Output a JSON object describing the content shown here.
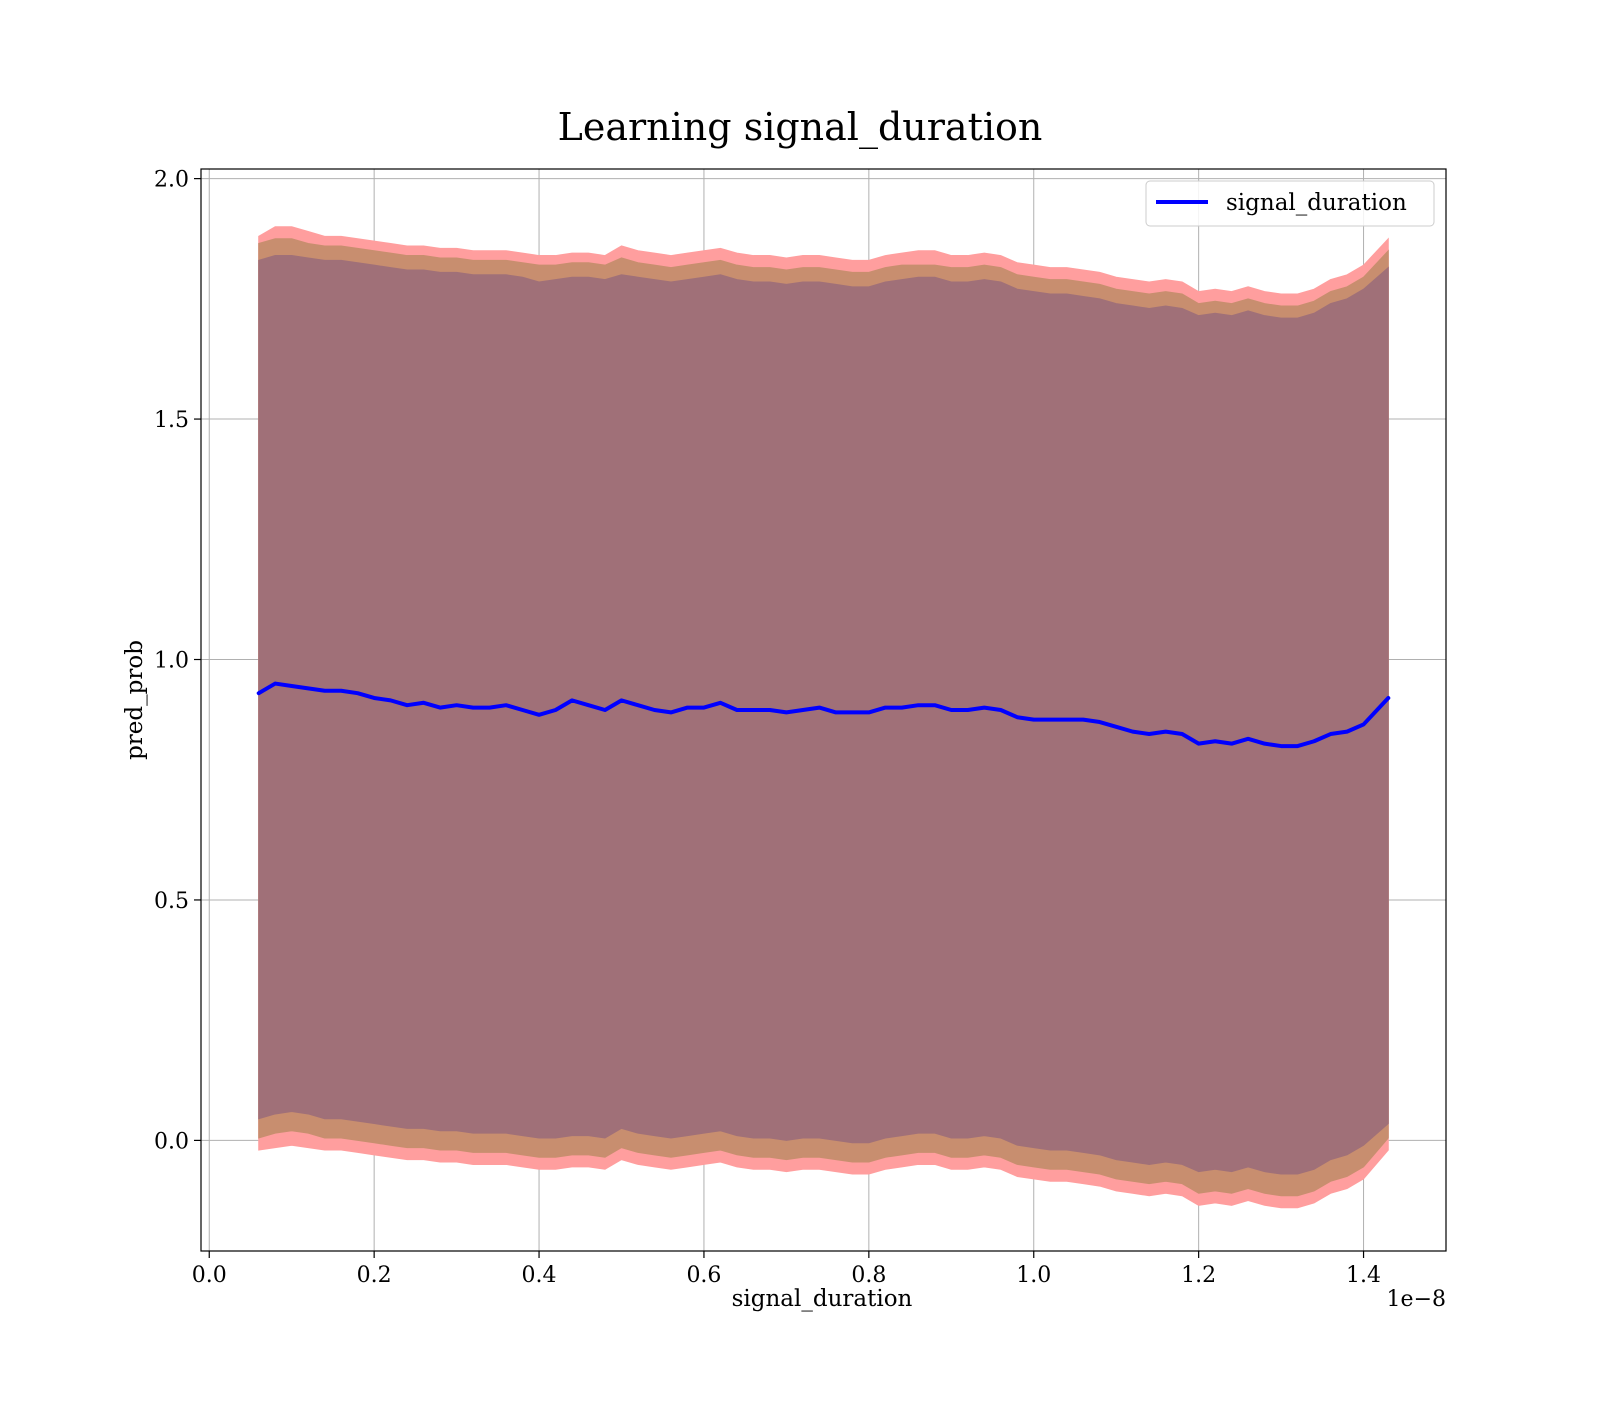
{
  "chart_data": {
    "type": "area",
    "title": "Learning signal_duration",
    "xlabel": "signal_duration",
    "ylabel": "pred_prob",
    "x_offset_label": "1e−8",
    "xlim": [
      -0.01,
      1.5
    ],
    "ylim": [
      -0.23,
      2.02
    ],
    "x_ticks": [
      0.0,
      0.2,
      0.4,
      0.6,
      0.8,
      1.0,
      1.2,
      1.4
    ],
    "x_tick_labels": [
      "0.0",
      "0.2",
      "0.4",
      "0.6",
      "0.8",
      "1.0",
      "1.2",
      "1.4"
    ],
    "y_ticks": [
      0.0,
      0.5,
      1.0,
      1.5,
      2.0
    ],
    "y_tick_labels": [
      "0.0",
      "0.5",
      "1.0",
      "1.5",
      "2.0"
    ],
    "grid": true,
    "legend_position": "top-right",
    "legend": [
      "signal_duration"
    ],
    "colors": {
      "line": "#0000ff",
      "band_outer": "#ff9e9e",
      "band_middle": "#c88e6f",
      "band_inner": "#a07078"
    },
    "x": [
      0.06,
      0.08,
      0.1,
      0.12,
      0.14,
      0.16,
      0.18,
      0.2,
      0.22,
      0.24,
      0.26,
      0.28,
      0.3,
      0.32,
      0.34,
      0.36,
      0.38,
      0.4,
      0.42,
      0.44,
      0.46,
      0.48,
      0.5,
      0.52,
      0.54,
      0.56,
      0.58,
      0.6,
      0.62,
      0.64,
      0.66,
      0.68,
      0.7,
      0.72,
      0.74,
      0.76,
      0.78,
      0.8,
      0.82,
      0.84,
      0.86,
      0.88,
      0.9,
      0.92,
      0.94,
      0.96,
      0.98,
      1.0,
      1.02,
      1.04,
      1.06,
      1.08,
      1.1,
      1.12,
      1.14,
      1.16,
      1.18,
      1.2,
      1.22,
      1.24,
      1.26,
      1.28,
      1.3,
      1.32,
      1.34,
      1.36,
      1.38,
      1.4,
      1.43
    ],
    "series": [
      {
        "name": "signal_duration",
        "values": [
          0.93,
          0.95,
          0.945,
          0.94,
          0.935,
          0.935,
          0.93,
          0.92,
          0.915,
          0.905,
          0.91,
          0.9,
          0.905,
          0.9,
          0.9,
          0.905,
          0.895,
          0.885,
          0.895,
          0.915,
          0.905,
          0.895,
          0.915,
          0.905,
          0.895,
          0.89,
          0.9,
          0.9,
          0.91,
          0.895,
          0.895,
          0.895,
          0.89,
          0.895,
          0.9,
          0.89,
          0.89,
          0.89,
          0.9,
          0.9,
          0.905,
          0.905,
          0.895,
          0.895,
          0.9,
          0.895,
          0.88,
          0.875,
          0.875,
          0.875,
          0.875,
          0.87,
          0.86,
          0.85,
          0.845,
          0.85,
          0.845,
          0.825,
          0.83,
          0.825,
          0.835,
          0.825,
          0.82,
          0.82,
          0.83,
          0.845,
          0.85,
          0.865,
          0.92
        ]
      }
    ],
    "bands": [
      {
        "upper": [
          1.88,
          1.9,
          1.9,
          1.89,
          1.88,
          1.88,
          1.875,
          1.87,
          1.865,
          1.86,
          1.86,
          1.855,
          1.855,
          1.85,
          1.85,
          1.85,
          1.845,
          1.84,
          1.84,
          1.845,
          1.845,
          1.84,
          1.86,
          1.85,
          1.845,
          1.84,
          1.845,
          1.85,
          1.855,
          1.845,
          1.84,
          1.84,
          1.835,
          1.84,
          1.84,
          1.835,
          1.83,
          1.83,
          1.84,
          1.845,
          1.85,
          1.85,
          1.84,
          1.84,
          1.845,
          1.84,
          1.825,
          1.82,
          1.815,
          1.815,
          1.81,
          1.805,
          1.795,
          1.79,
          1.785,
          1.79,
          1.785,
          1.765,
          1.77,
          1.765,
          1.775,
          1.765,
          1.76,
          1.76,
          1.77,
          1.79,
          1.8,
          1.82,
          1.875
        ],
        "lower": [
          -0.02,
          -0.015,
          -0.01,
          -0.015,
          -0.02,
          -0.02,
          -0.025,
          -0.03,
          -0.035,
          -0.04,
          -0.04,
          -0.045,
          -0.045,
          -0.05,
          -0.05,
          -0.05,
          -0.055,
          -0.06,
          -0.06,
          -0.055,
          -0.055,
          -0.06,
          -0.04,
          -0.05,
          -0.055,
          -0.06,
          -0.055,
          -0.05,
          -0.045,
          -0.055,
          -0.06,
          -0.06,
          -0.065,
          -0.06,
          -0.06,
          -0.065,
          -0.07,
          -0.07,
          -0.06,
          -0.055,
          -0.05,
          -0.05,
          -0.06,
          -0.06,
          -0.055,
          -0.06,
          -0.075,
          -0.08,
          -0.085,
          -0.085,
          -0.09,
          -0.095,
          -0.105,
          -0.11,
          -0.115,
          -0.11,
          -0.115,
          -0.135,
          -0.13,
          -0.135,
          -0.125,
          -0.135,
          -0.14,
          -0.14,
          -0.13,
          -0.11,
          -0.1,
          -0.08,
          -0.02
        ]
      },
      {
        "upper": [
          1.865,
          1.875,
          1.875,
          1.865,
          1.86,
          1.86,
          1.855,
          1.85,
          1.845,
          1.84,
          1.84,
          1.835,
          1.835,
          1.83,
          1.83,
          1.83,
          1.825,
          1.82,
          1.82,
          1.825,
          1.825,
          1.82,
          1.835,
          1.825,
          1.82,
          1.815,
          1.82,
          1.825,
          1.83,
          1.82,
          1.815,
          1.815,
          1.81,
          1.815,
          1.815,
          1.81,
          1.805,
          1.805,
          1.815,
          1.82,
          1.82,
          1.82,
          1.815,
          1.815,
          1.82,
          1.815,
          1.8,
          1.795,
          1.79,
          1.79,
          1.785,
          1.78,
          1.77,
          1.765,
          1.76,
          1.765,
          1.76,
          1.74,
          1.745,
          1.74,
          1.75,
          1.74,
          1.735,
          1.735,
          1.745,
          1.765,
          1.775,
          1.795,
          1.85
        ],
        "lower": [
          0.005,
          0.015,
          0.02,
          0.015,
          0.005,
          0.005,
          0.0,
          -0.005,
          -0.01,
          -0.015,
          -0.015,
          -0.02,
          -0.02,
          -0.025,
          -0.025,
          -0.025,
          -0.03,
          -0.035,
          -0.035,
          -0.03,
          -0.03,
          -0.035,
          -0.015,
          -0.025,
          -0.03,
          -0.035,
          -0.03,
          -0.025,
          -0.02,
          -0.03,
          -0.035,
          -0.035,
          -0.04,
          -0.035,
          -0.035,
          -0.04,
          -0.045,
          -0.045,
          -0.035,
          -0.03,
          -0.025,
          -0.025,
          -0.035,
          -0.035,
          -0.03,
          -0.035,
          -0.05,
          -0.055,
          -0.06,
          -0.06,
          -0.065,
          -0.07,
          -0.08,
          -0.085,
          -0.09,
          -0.085,
          -0.09,
          -0.11,
          -0.105,
          -0.11,
          -0.1,
          -0.11,
          -0.115,
          -0.115,
          -0.105,
          -0.085,
          -0.075,
          -0.055,
          0.005
        ]
      },
      {
        "upper": [
          1.83,
          1.84,
          1.84,
          1.835,
          1.83,
          1.83,
          1.825,
          1.82,
          1.815,
          1.81,
          1.81,
          1.805,
          1.805,
          1.8,
          1.8,
          1.8,
          1.795,
          1.785,
          1.79,
          1.795,
          1.795,
          1.79,
          1.8,
          1.795,
          1.79,
          1.785,
          1.79,
          1.795,
          1.8,
          1.79,
          1.785,
          1.785,
          1.78,
          1.785,
          1.785,
          1.78,
          1.775,
          1.775,
          1.785,
          1.79,
          1.795,
          1.795,
          1.785,
          1.785,
          1.79,
          1.785,
          1.77,
          1.765,
          1.76,
          1.76,
          1.755,
          1.75,
          1.74,
          1.735,
          1.73,
          1.735,
          1.73,
          1.715,
          1.72,
          1.715,
          1.725,
          1.715,
          1.71,
          1.71,
          1.72,
          1.74,
          1.75,
          1.77,
          1.815
        ],
        "lower": [
          0.045,
          0.055,
          0.06,
          0.055,
          0.045,
          0.045,
          0.04,
          0.035,
          0.03,
          0.025,
          0.025,
          0.02,
          0.02,
          0.015,
          0.015,
          0.015,
          0.01,
          0.005,
          0.005,
          0.01,
          0.01,
          0.005,
          0.025,
          0.015,
          0.01,
          0.005,
          0.01,
          0.015,
          0.02,
          0.01,
          0.005,
          0.005,
          0.0,
          0.005,
          0.005,
          0.0,
          -0.005,
          -0.005,
          0.005,
          0.01,
          0.015,
          0.015,
          0.005,
          0.005,
          0.01,
          0.005,
          -0.01,
          -0.015,
          -0.02,
          -0.02,
          -0.025,
          -0.03,
          -0.04,
          -0.045,
          -0.05,
          -0.045,
          -0.05,
          -0.065,
          -0.06,
          -0.065,
          -0.055,
          -0.065,
          -0.07,
          -0.07,
          -0.06,
          -0.04,
          -0.03,
          -0.01,
          0.035
        ]
      }
    ]
  }
}
